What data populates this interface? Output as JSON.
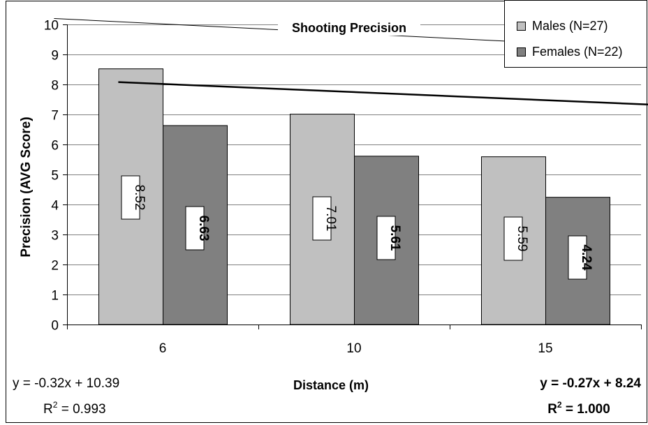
{
  "chart_data": {
    "type": "bar",
    "title": "Shooting Precision",
    "xlabel": "Distance (m)",
    "ylabel": "Precision (AVG Score)",
    "categories": [
      "6",
      "10",
      "15"
    ],
    "ylim": [
      0,
      10
    ],
    "yticks": [
      0,
      1,
      2,
      3,
      4,
      5,
      6,
      7,
      8,
      9,
      10
    ],
    "grid": true,
    "legend_position": "top-right",
    "series": [
      {
        "name": "Males (N=27)",
        "values": [
          8.52,
          7.01,
          5.59
        ],
        "labels": [
          "8.52",
          "7.01",
          "5.59"
        ],
        "color": "#c0c0c0",
        "label_bold": false
      },
      {
        "name": "Females (N=22)",
        "values": [
          6.63,
          5.61,
          4.24
        ],
        "labels": [
          "6.63",
          "5.61",
          "4.24"
        ],
        "color": "#808080",
        "label_bold": true
      }
    ],
    "trendlines": [
      {
        "series": "Males (N=27)",
        "slope": -0.32,
        "intercept": 10.39,
        "equation": "y = -0.32x + 10.39",
        "r2_prefix": "R",
        "r2_sup": "2",
        "r2_value": " = 0.993",
        "bold": false
      },
      {
        "series": "Females (N=22)",
        "slope": -0.27,
        "intercept": 8.24,
        "equation": "y = -0.27x + 8.24",
        "r2_prefix": "R",
        "r2_sup": "2",
        "r2_value": " = 1.000",
        "bold": true
      }
    ]
  }
}
